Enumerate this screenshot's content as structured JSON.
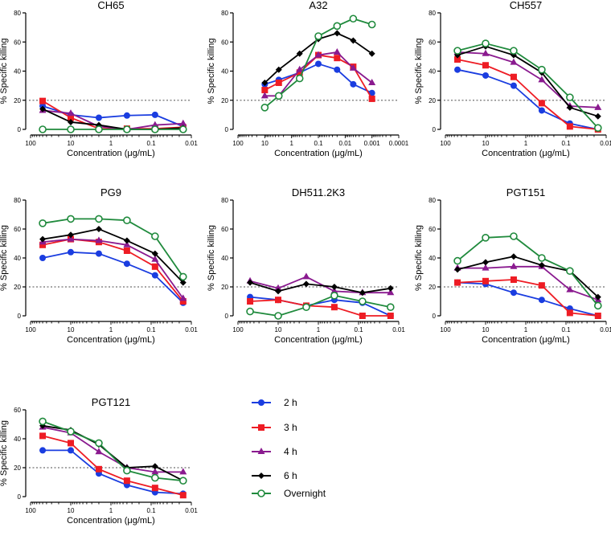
{
  "series_styles": [
    {
      "name": "2 h",
      "color": "#1a3de0",
      "marker": "circle"
    },
    {
      "name": "3 h",
      "color": "#ee1c24",
      "marker": "square"
    },
    {
      "name": "4 h",
      "color": "#8a1a8f",
      "marker": "triangle"
    },
    {
      "name": "6 h",
      "color": "#000000",
      "marker": "diamond"
    },
    {
      "name": "Overnight",
      "color": "#1f8a3c",
      "marker": "open-circle"
    }
  ],
  "colors": {
    "reference_line": "#888888"
  },
  "chart_data": [
    {
      "type": "line",
      "title": "CH65",
      "xlabel": "Concentration (μg/mL)",
      "ylabel": "% Specific killing",
      "x_scale": "log-reversed",
      "xlim": [
        100,
        0.01
      ],
      "xticks": [
        "100",
        "10",
        "1",
        "0.1",
        "0.01"
      ],
      "ylim": [
        0,
        80
      ],
      "yticks": [
        0,
        20,
        40,
        60,
        80
      ],
      "reference_line": 20,
      "x": [
        50,
        10,
        2,
        0.4,
        0.08,
        0.016
      ],
      "series": [
        {
          "name": "2 h",
          "values": [
            16,
            10,
            8,
            9.5,
            10,
            2
          ]
        },
        {
          "name": "3 h",
          "values": [
            19.5,
            8,
            0.5,
            0.5,
            0.5,
            1.5
          ]
        },
        {
          "name": "4 h",
          "values": [
            13,
            11,
            2,
            0,
            3,
            4
          ]
        },
        {
          "name": "6 h",
          "values": [
            14,
            5,
            3,
            0,
            0,
            1
          ]
        },
        {
          "name": "Overnight",
          "values": [
            0,
            0,
            0,
            0,
            0,
            0
          ]
        }
      ]
    },
    {
      "type": "line",
      "title": "A32",
      "xlabel": "Concentration (μg/mL)",
      "ylabel": "% Specific killing",
      "x_scale": "log-reversed",
      "xlim": [
        100,
        0.0001
      ],
      "xticks": [
        "100",
        "10",
        "1",
        "0.1",
        "0.01",
        "0.001",
        "0.0001"
      ],
      "ylim": [
        0,
        80
      ],
      "yticks": [
        0,
        20,
        40,
        60,
        80
      ],
      "reference_line": 20,
      "x": [
        10,
        3,
        0.5,
        0.1,
        0.02,
        0.005,
        0.001
      ],
      "series": [
        {
          "name": "2 h",
          "values": [
            31,
            34,
            39,
            45,
            41,
            31,
            25
          ]
        },
        {
          "name": "3 h",
          "values": [
            27,
            32,
            39,
            51,
            49,
            43,
            21
          ]
        },
        {
          "name": "4 h",
          "values": [
            23,
            23,
            41,
            51,
            53,
            42,
            32
          ]
        },
        {
          "name": "6 h",
          "values": [
            32,
            41,
            52,
            62,
            66,
            61,
            52
          ]
        },
        {
          "name": "Overnight",
          "values": [
            15,
            23,
            35,
            64,
            71,
            76,
            72
          ]
        }
      ]
    },
    {
      "type": "line",
      "title": "CH557",
      "xlabel": "Concentration (μg/mL)",
      "ylabel": "% Specific killing",
      "x_scale": "log-reversed",
      "xlim": [
        100,
        0.01
      ],
      "xticks": [
        "100",
        "10",
        "1",
        "0.1",
        "0.01"
      ],
      "ylim": [
        0,
        80
      ],
      "yticks": [
        0,
        20,
        40,
        60,
        80
      ],
      "reference_line": 20,
      "x": [
        50,
        10,
        2,
        0.4,
        0.08,
        0.016
      ],
      "series": [
        {
          "name": "2 h",
          "values": [
            41,
            37,
            30,
            13,
            4,
            0
          ]
        },
        {
          "name": "3 h",
          "values": [
            48,
            44,
            36,
            18,
            2,
            0
          ]
        },
        {
          "name": "4 h",
          "values": [
            53,
            52,
            46,
            34,
            16,
            15
          ]
        },
        {
          "name": "6 h",
          "values": [
            51,
            57,
            51,
            39,
            15,
            9
          ]
        },
        {
          "name": "Overnight",
          "values": [
            54,
            59,
            54,
            41,
            22,
            1
          ]
        }
      ]
    },
    {
      "type": "line",
      "title": "PG9",
      "xlabel": "Concentration (μg/mL)",
      "ylabel": "% Specific killing",
      "x_scale": "log-reversed",
      "xlim": [
        100,
        0.01
      ],
      "xticks": [
        "100",
        "10",
        "1",
        "0.1",
        "0.01"
      ],
      "ylim": [
        0,
        80
      ],
      "yticks": [
        0,
        20,
        40,
        60,
        80
      ],
      "reference_line": 20,
      "x": [
        50,
        10,
        2,
        0.4,
        0.08,
        0.016
      ],
      "series": [
        {
          "name": "2 h",
          "values": [
            40,
            44,
            43,
            36,
            28,
            9
          ]
        },
        {
          "name": "3 h",
          "values": [
            49,
            53,
            51,
            45,
            34,
            10
          ]
        },
        {
          "name": "4 h",
          "values": [
            51,
            53,
            52,
            49,
            39,
            12
          ]
        },
        {
          "name": "6 h",
          "values": [
            53,
            56,
            60,
            52,
            43,
            23
          ]
        },
        {
          "name": "Overnight",
          "values": [
            64,
            67,
            67,
            66,
            55,
            27
          ]
        }
      ]
    },
    {
      "type": "line",
      "title": "DH511.2K3",
      "xlabel": "Concentration (μg/mL)",
      "ylabel": "% Specific killing",
      "x_scale": "log-reversed",
      "xlim": [
        100,
        0.01
      ],
      "xticks": [
        "100",
        "10",
        "1",
        "0.1",
        "0.01"
      ],
      "ylim": [
        0,
        80
      ],
      "yticks": [
        0,
        20,
        40,
        60,
        80
      ],
      "reference_line": 20,
      "x": [
        50,
        10,
        2,
        0.4,
        0.08,
        0.016
      ],
      "series": [
        {
          "name": "2 h",
          "values": [
            13,
            11,
            7,
            11,
            9,
            0
          ]
        },
        {
          "name": "3 h",
          "values": [
            10,
            11,
            7,
            6,
            0,
            0
          ]
        },
        {
          "name": "4 h",
          "values": [
            24,
            19,
            27,
            17,
            16,
            16
          ]
        },
        {
          "name": "6 h",
          "values": [
            23,
            17,
            22,
            20,
            16,
            19
          ]
        },
        {
          "name": "Overnight",
          "values": [
            3,
            0,
            6,
            14,
            10,
            6
          ]
        }
      ]
    },
    {
      "type": "line",
      "title": "PGT151",
      "xlabel": "Concentration (μg/mL)",
      "ylabel": "% Specific killing",
      "x_scale": "log-reversed",
      "xlim": [
        100,
        0.01
      ],
      "xticks": [
        "100",
        "10",
        "1",
        "0.1",
        "0.01"
      ],
      "ylim": [
        0,
        80
      ],
      "yticks": [
        0,
        20,
        40,
        60,
        80
      ],
      "reference_line": 20,
      "x": [
        50,
        10,
        2,
        0.4,
        0.08,
        0.016
      ],
      "series": [
        {
          "name": "2 h",
          "values": [
            23,
            22,
            16,
            11,
            5,
            0
          ]
        },
        {
          "name": "3 h",
          "values": [
            23,
            24,
            25,
            21,
            2,
            0
          ]
        },
        {
          "name": "4 h",
          "values": [
            33,
            33,
            34,
            34,
            18,
            11
          ]
        },
        {
          "name": "6 h",
          "values": [
            32,
            37,
            41,
            35,
            31,
            13
          ]
        },
        {
          "name": "Overnight",
          "values": [
            38,
            54,
            55,
            40,
            31,
            7
          ]
        }
      ]
    },
    {
      "type": "line",
      "title": "PGT121",
      "xlabel": "Concentration (μg/mL)",
      "ylabel": "% Specific killing",
      "x_scale": "log-reversed",
      "xlim": [
        100,
        0.01
      ],
      "xticks": [
        "100",
        "10",
        "1",
        "0.1",
        "0.01"
      ],
      "ylim": [
        0,
        60
      ],
      "yticks": [
        0,
        20,
        40,
        60
      ],
      "reference_line": 20,
      "x": [
        50,
        10,
        2,
        0.4,
        0.08,
        0.016
      ],
      "series": [
        {
          "name": "2 h",
          "values": [
            32,
            32,
            16,
            8,
            3,
            2
          ]
        },
        {
          "name": "3 h",
          "values": [
            42,
            37,
            19,
            11,
            6,
            1
          ]
        },
        {
          "name": "4 h",
          "values": [
            48,
            44,
            31,
            20,
            17,
            17
          ]
        },
        {
          "name": "6 h",
          "values": [
            49,
            46,
            36,
            20,
            21,
            11
          ]
        },
        {
          "name": "Overnight",
          "values": [
            52,
            45,
            37,
            18,
            13,
            11
          ]
        }
      ]
    }
  ]
}
